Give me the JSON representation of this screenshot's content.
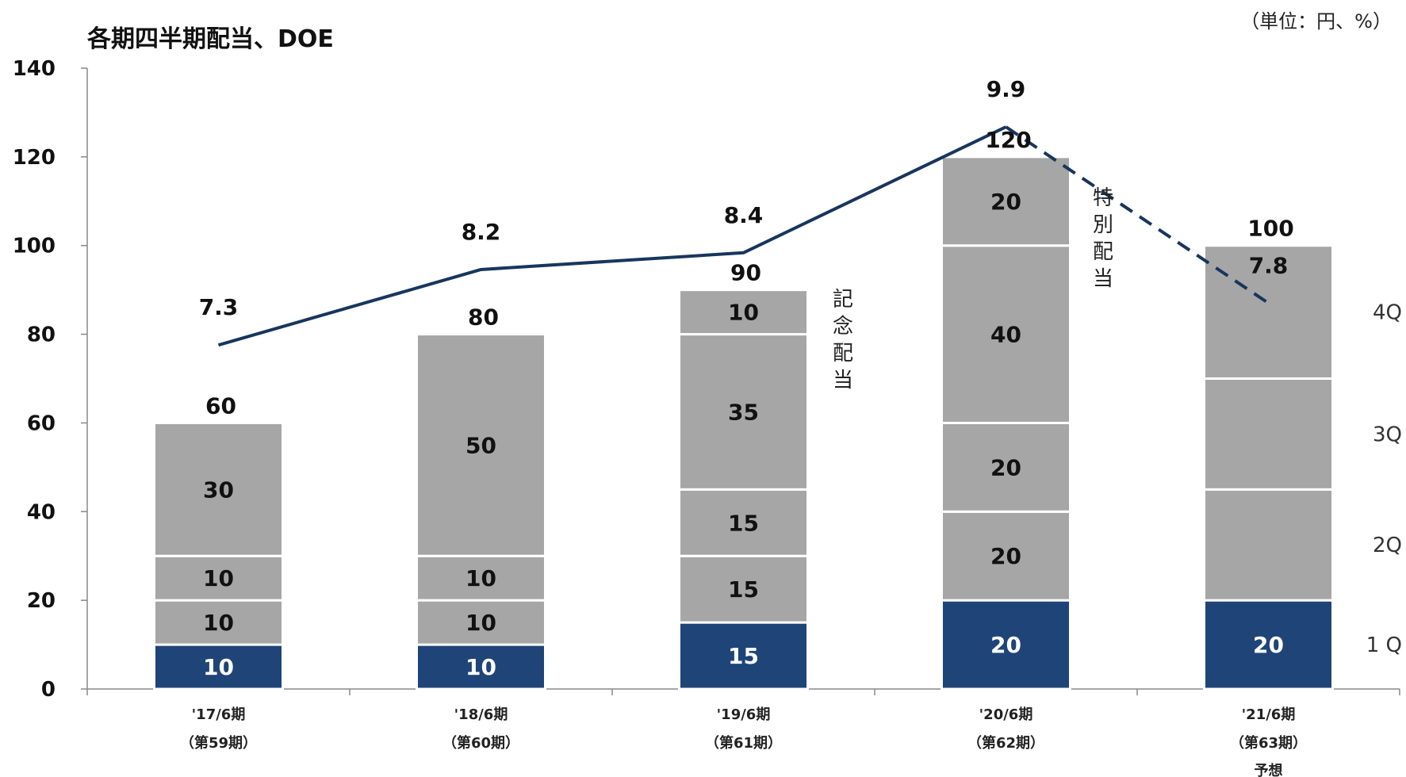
{
  "chart_data": {
    "type": "bar",
    "title": "各期四半期配当、DOE",
    "unit_note": "（単位：円、%）",
    "ylim": [
      0,
      140
    ],
    "yticks": [
      0,
      20,
      40,
      60,
      80,
      100,
      120,
      140
    ],
    "categories": [
      {
        "line1": "'17/6期",
        "line2": "（第59期）",
        "line3": ""
      },
      {
        "line1": "'18/6期",
        "line2": "（第60期）",
        "line3": ""
      },
      {
        "line1": "'19/6期",
        "line2": "（第61期）",
        "line3": ""
      },
      {
        "line1": "'20/6期",
        "line2": "（第62期）",
        "line3": ""
      },
      {
        "line1": "'21/6期",
        "line2": "（第63期）",
        "line3": "予想"
      }
    ],
    "stacks": [
      [
        10,
        10,
        10,
        30
      ],
      [
        10,
        10,
        10,
        50
      ],
      [
        15,
        15,
        15,
        35,
        10
      ],
      [
        20,
        20,
        20,
        40,
        20
      ],
      [
        20,
        25,
        25,
        30
      ]
    ],
    "segment_labels": [
      [
        "10",
        "10",
        "10",
        "30"
      ],
      [
        "10",
        "10",
        "10",
        "50"
      ],
      [
        "15",
        "15",
        "15",
        "35",
        "10"
      ],
      [
        "20",
        "20",
        "20",
        "40",
        "20"
      ],
      [
        "20",
        "",
        "",
        ""
      ]
    ],
    "totals": [
      "60",
      "80",
      "90",
      "120",
      "100"
    ],
    "doe": {
      "values": [
        7.3,
        8.2,
        8.4,
        9.9,
        7.8
      ],
      "labels": [
        "7.3",
        "8.2",
        "8.4",
        "9.9",
        "7.8"
      ],
      "forecast_from_index": 3
    },
    "quarter_labels": [
      "4Q",
      "3Q",
      "2Q",
      "1 Q"
    ],
    "annotations": {
      "commemorative": "記念配当",
      "special": "特別配当"
    },
    "colors": {
      "q1": "#1f4477",
      "other": "#a6a6a6",
      "line": "#17365d",
      "separator": "#ffffff"
    }
  }
}
